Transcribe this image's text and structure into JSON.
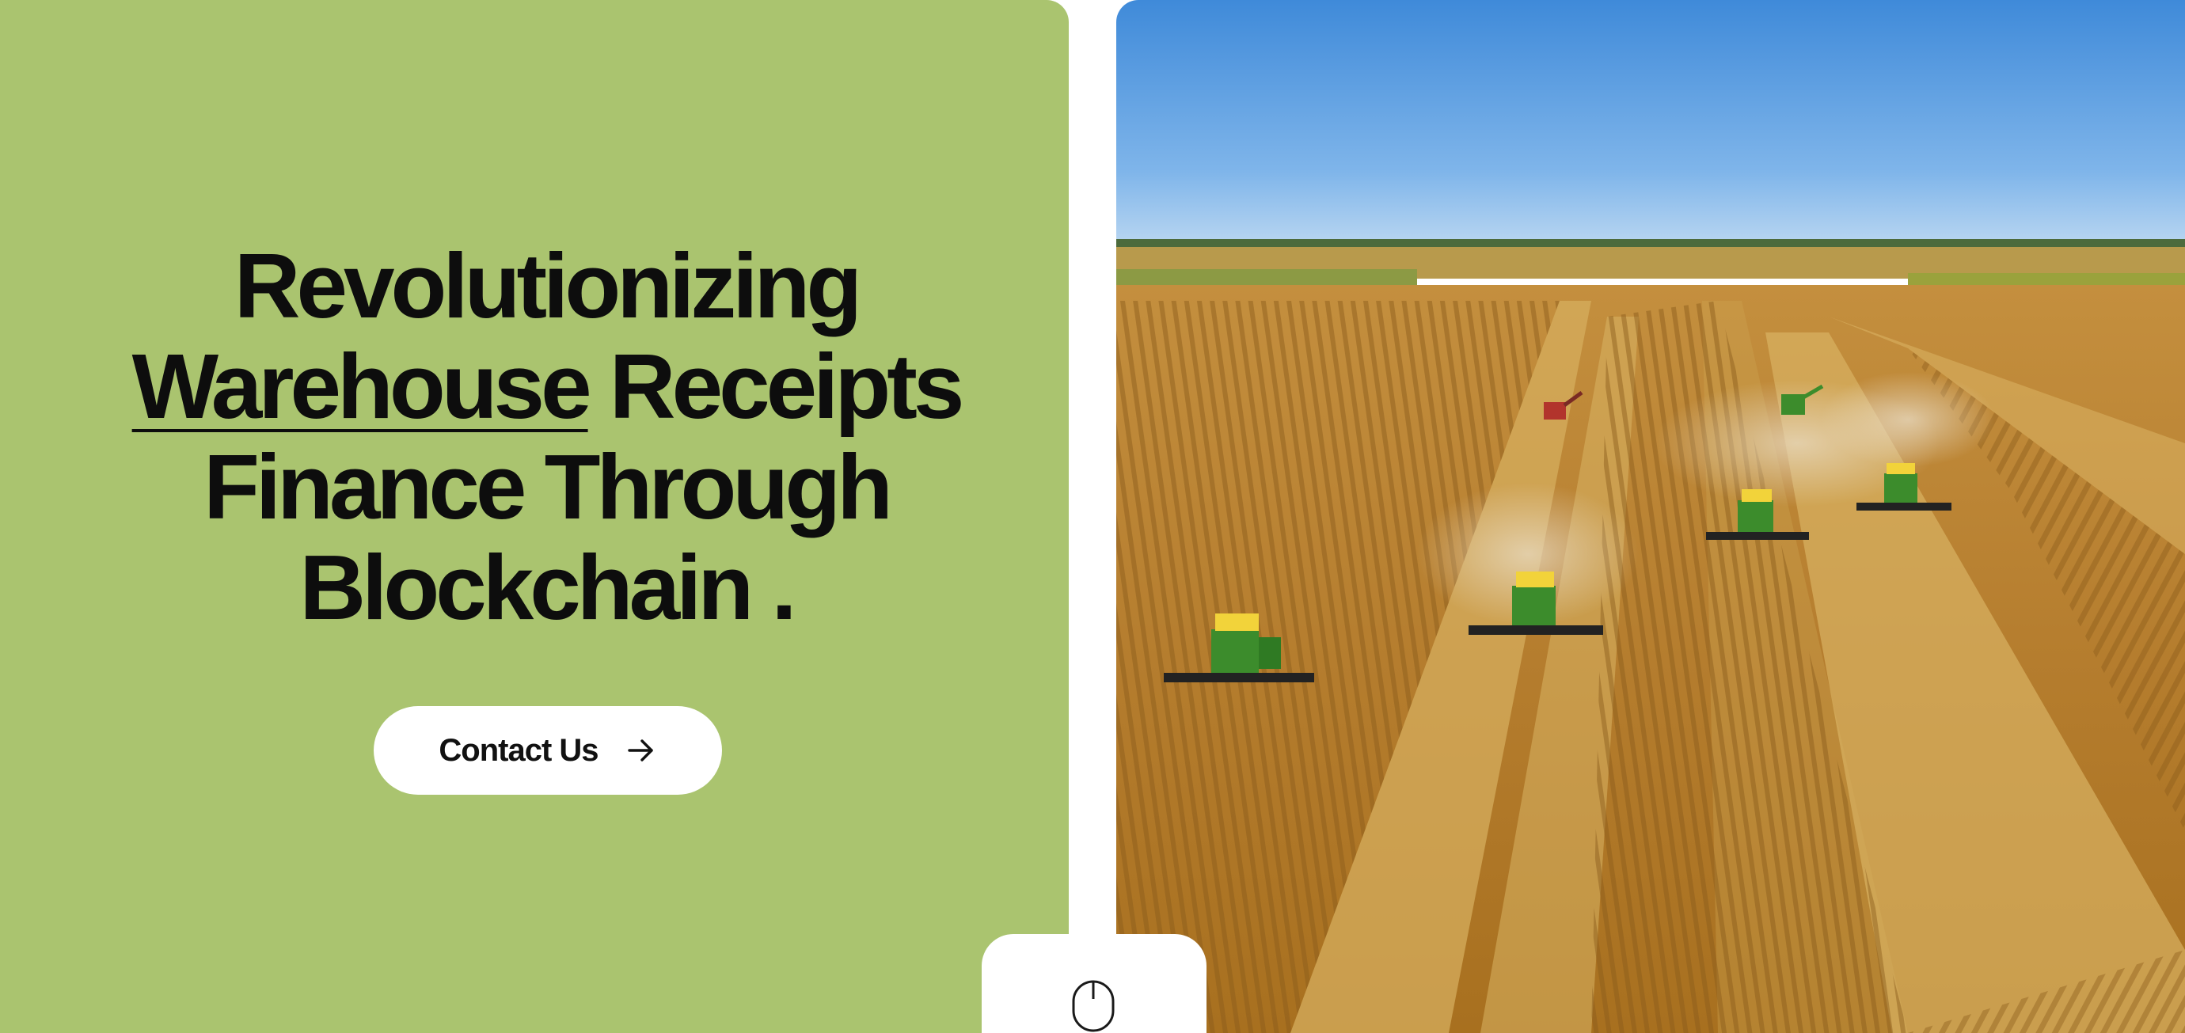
{
  "hero": {
    "headline_line1": "Revolutionizing",
    "headline_line2_underlined": "Warehouse",
    "headline_line2_rest": " Receipts",
    "headline_line3": "Finance Through",
    "headline_line4": "Blockchain .",
    "contact_button_label": "Contact Us",
    "button_icon": "arrow-right-icon"
  },
  "colors": {
    "hero_background": "#aac46f",
    "button_background": "#ffffff",
    "text": "#0d0d0d"
  },
  "photo": {
    "subject": "harvest-photo"
  },
  "scroll_indicator": {
    "icon": "mouse-icon"
  }
}
